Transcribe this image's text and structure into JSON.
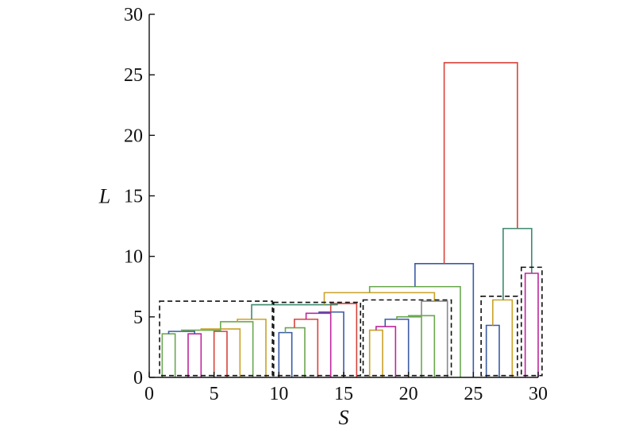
{
  "chart_data": {
    "type": "dendrogram",
    "title": "",
    "xlabel": "S",
    "ylabel": "L",
    "xlim": [
      0,
      30
    ],
    "ylim": [
      0,
      30
    ],
    "xticks": [
      "0",
      "5",
      "10",
      "15",
      "20",
      "25",
      "30"
    ],
    "yticks": [
      "0",
      "5",
      "10",
      "15",
      "20",
      "25",
      "30"
    ],
    "grid": false,
    "links": [
      {
        "left": [
          1,
          0
        ],
        "right": [
          2,
          0
        ],
        "height": 3.6,
        "color": "#6aa84f"
      },
      {
        "left": [
          3,
          0
        ],
        "right": [
          4,
          0
        ],
        "height": 3.6,
        "color": "#c0269e"
      },
      {
        "left": [
          1.5,
          3.6
        ],
        "right": [
          3.5,
          3.6
        ],
        "height": 3.8,
        "color": "#3b5ba5"
      },
      {
        "left": [
          5,
          0
        ],
        "right": [
          6,
          0
        ],
        "height": 3.8,
        "color": "#d9423a"
      },
      {
        "left": [
          2.5,
          3.8
        ],
        "right": [
          5.5,
          3.8
        ],
        "height": 3.9,
        "color": "#6aa84f"
      },
      {
        "left": [
          4,
          3.9
        ],
        "right": [
          7,
          0
        ],
        "height": 4.0,
        "color": "#c9a227"
      },
      {
        "left": [
          5.5,
          4.0
        ],
        "right": [
          8,
          0
        ],
        "height": 4.6,
        "color": "#6aa84f"
      },
      {
        "left": [
          6.8,
          4.6
        ],
        "right": [
          9,
          0
        ],
        "height": 4.8,
        "color": "#c9a227"
      },
      {
        "left": [
          10,
          0
        ],
        "right": [
          11,
          0
        ],
        "height": 3.7,
        "color": "#3b5ba5"
      },
      {
        "left": [
          10.5,
          3.7
        ],
        "right": [
          12,
          0
        ],
        "height": 4.1,
        "color": "#6aa84f"
      },
      {
        "left": [
          11.2,
          4.1
        ],
        "right": [
          13,
          0
        ],
        "height": 4.8,
        "color": "#d9423a"
      },
      {
        "left": [
          12.1,
          4.8
        ],
        "right": [
          14,
          0
        ],
        "height": 5.3,
        "color": "#c0269e"
      },
      {
        "left": [
          13.1,
          5.3
        ],
        "right": [
          15,
          0
        ],
        "height": 5.4,
        "color": "#3b5ba5"
      },
      {
        "left": [
          14,
          5.4
        ],
        "right": [
          16,
          0
        ],
        "height": 6.1,
        "color": "#d9423a"
      },
      {
        "left": [
          7.9,
          4.8
        ],
        "right": [
          14.5,
          6.1
        ],
        "height": 6.0,
        "color": "#3d8a6e"
      },
      {
        "left": [
          17,
          0
        ],
        "right": [
          18,
          0
        ],
        "height": 3.9,
        "color": "#c9a227"
      },
      {
        "left": [
          17.5,
          3.9
        ],
        "right": [
          19,
          0
        ],
        "height": 4.2,
        "color": "#c0269e"
      },
      {
        "left": [
          18.2,
          4.2
        ],
        "right": [
          20,
          0
        ],
        "height": 4.8,
        "color": "#3b5ba5"
      },
      {
        "left": [
          19.1,
          4.8
        ],
        "right": [
          21,
          0
        ],
        "height": 5.0,
        "color": "#6aa84f"
      },
      {
        "left": [
          20,
          5.0
        ],
        "right": [
          22,
          0
        ],
        "height": 5.1,
        "color": "#6aa84f"
      },
      {
        "left": [
          21,
          5.1
        ],
        "right": [
          23,
          0
        ],
        "height": 6.3,
        "color": "#8a8a8a"
      },
      {
        "left": [
          13.5,
          6.0
        ],
        "right": [
          22,
          6.3
        ],
        "height": 7.0,
        "color": "#c9a227"
      },
      {
        "left": [
          17,
          7.0
        ],
        "right": [
          24,
          0
        ],
        "height": 7.5,
        "color": "#6aa84f"
      },
      {
        "left": [
          20.5,
          7.5
        ],
        "right": [
          25,
          0
        ],
        "height": 9.4,
        "color": "#3b5ba5"
      },
      {
        "left": [
          26,
          0
        ],
        "right": [
          27,
          0
        ],
        "height": 4.3,
        "color": "#3b5ba5"
      },
      {
        "left": [
          26.5,
          4.3
        ],
        "right": [
          28,
          0
        ],
        "height": 6.4,
        "color": "#c9a227"
      },
      {
        "left": [
          29,
          0
        ],
        "right": [
          30,
          0
        ],
        "height": 8.6,
        "color": "#c0269e"
      },
      {
        "left": [
          27.3,
          6.4
        ],
        "right": [
          29.5,
          8.6
        ],
        "height": 12.3,
        "color": "#3d8a6e"
      },
      {
        "left": [
          22.75,
          9.4
        ],
        "right": [
          28.4,
          12.3
        ],
        "height": 26.0,
        "color": "#d9423a"
      }
    ],
    "cluster_boxes": [
      {
        "x0": 0.8,
        "x1": 9.5,
        "y0": 0.15,
        "y1": 6.3
      },
      {
        "x0": 9.6,
        "x1": 16.3,
        "y0": 0.15,
        "y1": 6.2
      },
      {
        "x0": 16.5,
        "x1": 23.3,
        "y0": 0.15,
        "y1": 6.4
      },
      {
        "x0": 25.6,
        "x1": 28.4,
        "y0": 0.15,
        "y1": 6.7
      },
      {
        "x0": 28.7,
        "x1": 30.3,
        "y0": 0.15,
        "y1": 9.1
      }
    ]
  }
}
